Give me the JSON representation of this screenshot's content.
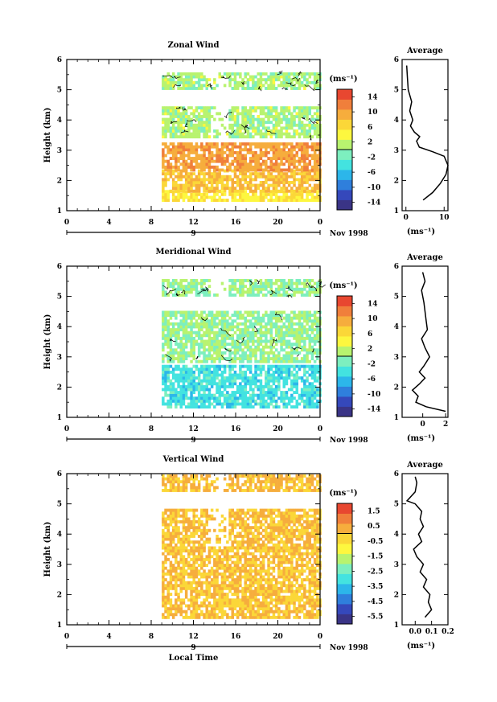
{
  "figure": {
    "x_tick_labels": [
      "0",
      "4",
      "8",
      "12",
      "16",
      "20",
      "0"
    ],
    "date_tick_label": "9",
    "date_caption": "Nov 1998",
    "xlabel": "Local Time",
    "ylabel": "Height (km)",
    "unit_label": "(ms⁻¹)"
  },
  "chart_data": [
    {
      "name": "zonal",
      "type": "heatmap",
      "title": "Zonal Wind",
      "xlabel": "Local Time",
      "ylabel": "Height (km)",
      "xlim": [
        0,
        24
      ],
      "ylim": [
        1,
        6
      ],
      "y_tick_labels": [
        "1",
        "2",
        "3",
        "4",
        "5",
        "6"
      ],
      "colorbar": {
        "label": "(ms⁻¹)",
        "range": [
          -16,
          16
        ],
        "tick_labels": [
          "14",
          "10",
          "6",
          "2",
          "-2",
          "-6",
          "-10",
          "-14"
        ],
        "tick_values": [
          14,
          10,
          6,
          2,
          -2,
          -6,
          -10,
          -14
        ]
      },
      "data_start_hour": 9,
      "zone_values": [
        {
          "height_range": [
            1.3,
            1.6
          ],
          "value": 5
        },
        {
          "height_range": [
            1.6,
            2.3
          ],
          "value": 8
        },
        {
          "height_range": [
            2.3,
            3.2
          ],
          "value": 10
        },
        {
          "height_range": [
            3.4,
            4.4
          ],
          "value": 1
        },
        {
          "height_range": [
            5.0,
            5.55
          ],
          "value": 1
        }
      ],
      "average_profile": {
        "title": "Average",
        "xlabel": "(ms⁻¹)",
        "x_tick_labels": [
          "0",
          "10"
        ],
        "xlim": [
          -1,
          11
        ],
        "heights": [
          1.35,
          1.6,
          1.9,
          2.2,
          2.5,
          2.8,
          2.95,
          3.1,
          3.3,
          3.45,
          3.6,
          3.8,
          4.0,
          4.3,
          4.6,
          5.0,
          5.4,
          5.8
        ],
        "values": [
          4.5,
          7.0,
          9.0,
          10.5,
          11.0,
          10.0,
          7.0,
          3.5,
          2.8,
          3.6,
          2.2,
          1.2,
          1.8,
          1.0,
          1.5,
          0.6,
          0.4,
          0.2
        ]
      }
    },
    {
      "name": "meridional",
      "type": "heatmap",
      "title": "Meridional Wind",
      "xlabel": "Local Time",
      "ylabel": "Height (km)",
      "xlim": [
        0,
        24
      ],
      "ylim": [
        1,
        6
      ],
      "y_tick_labels": [
        "1",
        "2",
        "3",
        "4",
        "5",
        "6"
      ],
      "colorbar": {
        "label": "(ms⁻¹)",
        "range": [
          -16,
          16
        ],
        "tick_labels": [
          "14",
          "10",
          "6",
          "2",
          "-2",
          "-6",
          "-10",
          "-14"
        ],
        "tick_values": [
          14,
          10,
          6,
          2,
          -2,
          -6,
          -10,
          -14
        ]
      },
      "data_start_hour": 9,
      "zone_values": [
        {
          "height_range": [
            1.3,
            2.7
          ],
          "value": -4
        },
        {
          "height_range": [
            2.8,
            4.5
          ],
          "value": 0
        },
        {
          "height_range": [
            5.0,
            5.5
          ],
          "value": 0
        }
      ],
      "average_profile": {
        "title": "Average",
        "xlabel": "(ms⁻¹)",
        "x_tick_labels": [
          "0",
          "2"
        ],
        "xlim": [
          -1.8,
          2.2
        ],
        "heights": [
          1.2,
          1.35,
          1.5,
          1.7,
          1.9,
          2.1,
          2.3,
          2.5,
          2.7,
          3.0,
          3.3,
          3.6,
          3.9,
          4.2,
          4.5,
          4.8,
          5.2,
          5.5,
          5.8
        ],
        "values": [
          2.0,
          0.3,
          -0.6,
          -0.4,
          -0.9,
          -0.3,
          0.2,
          -0.3,
          0.1,
          0.6,
          0.2,
          -0.1,
          0.4,
          0.3,
          0.2,
          0.1,
          -0.1,
          0.2,
          0.0
        ]
      }
    },
    {
      "name": "vertical",
      "type": "heatmap",
      "title": "Vertical Wind",
      "xlabel": "Local Time",
      "ylabel": "Height (km)",
      "xlim": [
        0,
        24
      ],
      "ylim": [
        1,
        6
      ],
      "y_tick_labels": [
        "1",
        "2",
        "3",
        "4",
        "5",
        "6"
      ],
      "colorbar": {
        "label": "(ms⁻¹)",
        "range": [
          -6.0,
          2.0
        ],
        "tick_labels": [
          "1.5",
          "0.5",
          "-0.5",
          "-1.5",
          "-2.5",
          "-3.5",
          "-4.5",
          "-5.5"
        ],
        "tick_values": [
          1.5,
          0.5,
          -0.5,
          -1.5,
          -2.5,
          -3.5,
          -4.5,
          -5.5
        ]
      },
      "data_start_hour": 9,
      "zone_values": [
        {
          "height_range": [
            1.2,
            3.5
          ],
          "value": 0.0
        },
        {
          "height_range": [
            3.5,
            4.8
          ],
          "value": 0.0
        },
        {
          "height_range": [
            5.4,
            5.9
          ],
          "value": 0.1
        }
      ],
      "average_profile": {
        "title": "Average",
        "xlabel": "(ms⁻¹)",
        "x_tick_labels": [
          "0.0",
          "0.1",
          "0.2"
        ],
        "xlim": [
          -0.08,
          0.2
        ],
        "heights": [
          1.25,
          1.5,
          1.75,
          2.0,
          2.25,
          2.5,
          2.75,
          3.0,
          3.25,
          3.5,
          3.75,
          4.0,
          4.25,
          4.5,
          4.75,
          5.0,
          5.1,
          5.4,
          5.7,
          5.9
        ],
        "values": [
          0.06,
          0.1,
          0.08,
          0.09,
          0.05,
          0.07,
          0.03,
          0.05,
          0.01,
          -0.01,
          0.04,
          0.02,
          0.05,
          0.03,
          0.04,
          0.0,
          -0.05,
          0.0,
          0.01,
          0.0
        ]
      }
    }
  ]
}
